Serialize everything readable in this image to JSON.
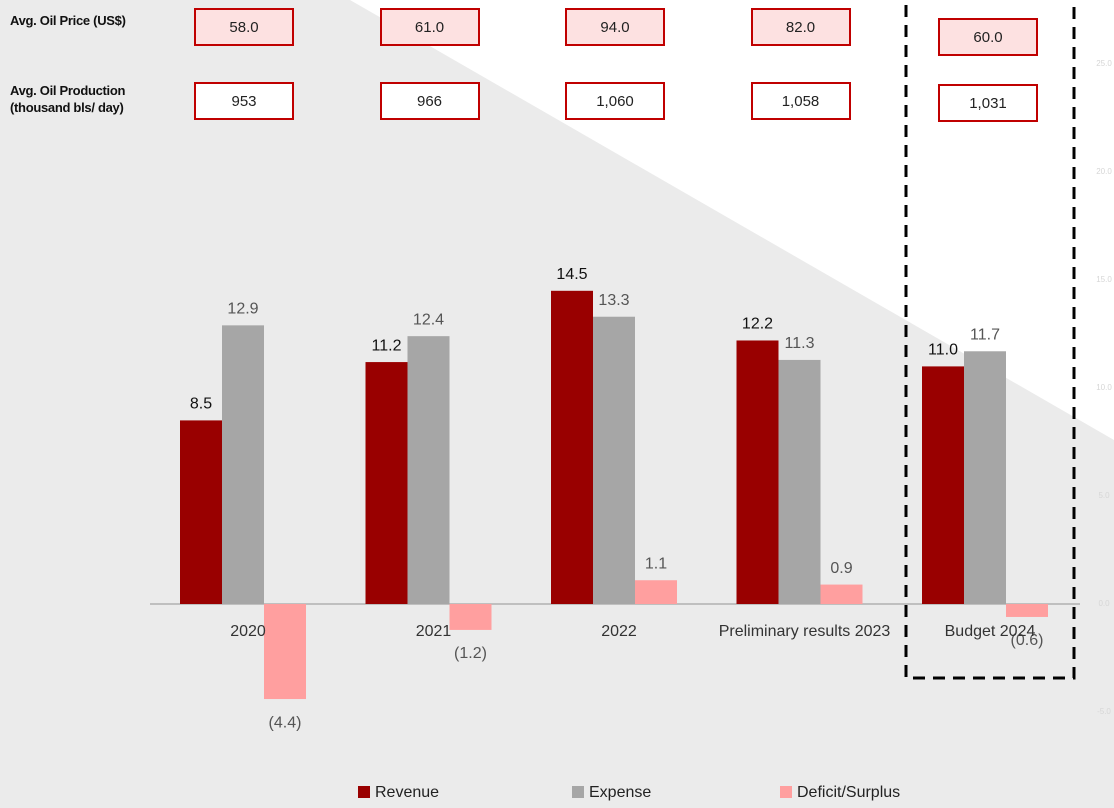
{
  "chart_data": {
    "type": "bar",
    "categories": [
      "2020",
      "2021",
      "2022",
      "Preliminary results 2023",
      "Budget 2024"
    ],
    "series": [
      {
        "name": "Revenue",
        "color": "#990000",
        "values": [
          8.5,
          11.2,
          14.5,
          12.2,
          11.0
        ],
        "value_labels": [
          "8.5",
          "11.2",
          "14.5",
          "12.2",
          "11.0"
        ]
      },
      {
        "name": "Expense",
        "color": "#a6a6a6",
        "values": [
          12.9,
          12.4,
          13.3,
          11.3,
          11.7
        ],
        "value_labels": [
          "12.9",
          "12.4",
          "13.3",
          "11.3",
          "11.7"
        ]
      },
      {
        "name": "Deficit/Surplus",
        "color": "#ff9f9f",
        "values": [
          -4.4,
          -1.2,
          1.1,
          0.9,
          -0.6
        ],
        "value_labels": [
          "(4.4)",
          "(1.2)",
          "1.1",
          "0.9",
          "(0.6)"
        ]
      }
    ],
    "ylim": [
      -5,
      25
    ],
    "yticks": [
      {
        "value": -5,
        "label": "-5.0"
      },
      {
        "value": 0,
        "label": "0.0"
      },
      {
        "value": 5,
        "label": "5.0"
      },
      {
        "value": 10,
        "label": "10.0"
      },
      {
        "value": 15,
        "label": "15.0"
      },
      {
        "value": 20,
        "label": "20.0"
      },
      {
        "value": 25,
        "label": "25.0"
      }
    ],
    "rows": [
      {
        "label": "Avg. Oil Price (US$)",
        "values": [
          58,
          61,
          94,
          82,
          60
        ],
        "value_labels": [
          "58.0",
          "61.0",
          "94.0",
          "82.0",
          "60.0"
        ],
        "fill": "#fde1e1"
      },
      {
        "label": "Avg. Oil Production (thousand bls/ day)",
        "values": [
          953,
          966,
          1060,
          1058,
          1031
        ],
        "value_labels": [
          "953",
          "966",
          "1,060",
          "1,058",
          "1,031"
        ],
        "fill": "#ffffff"
      }
    ]
  }
}
